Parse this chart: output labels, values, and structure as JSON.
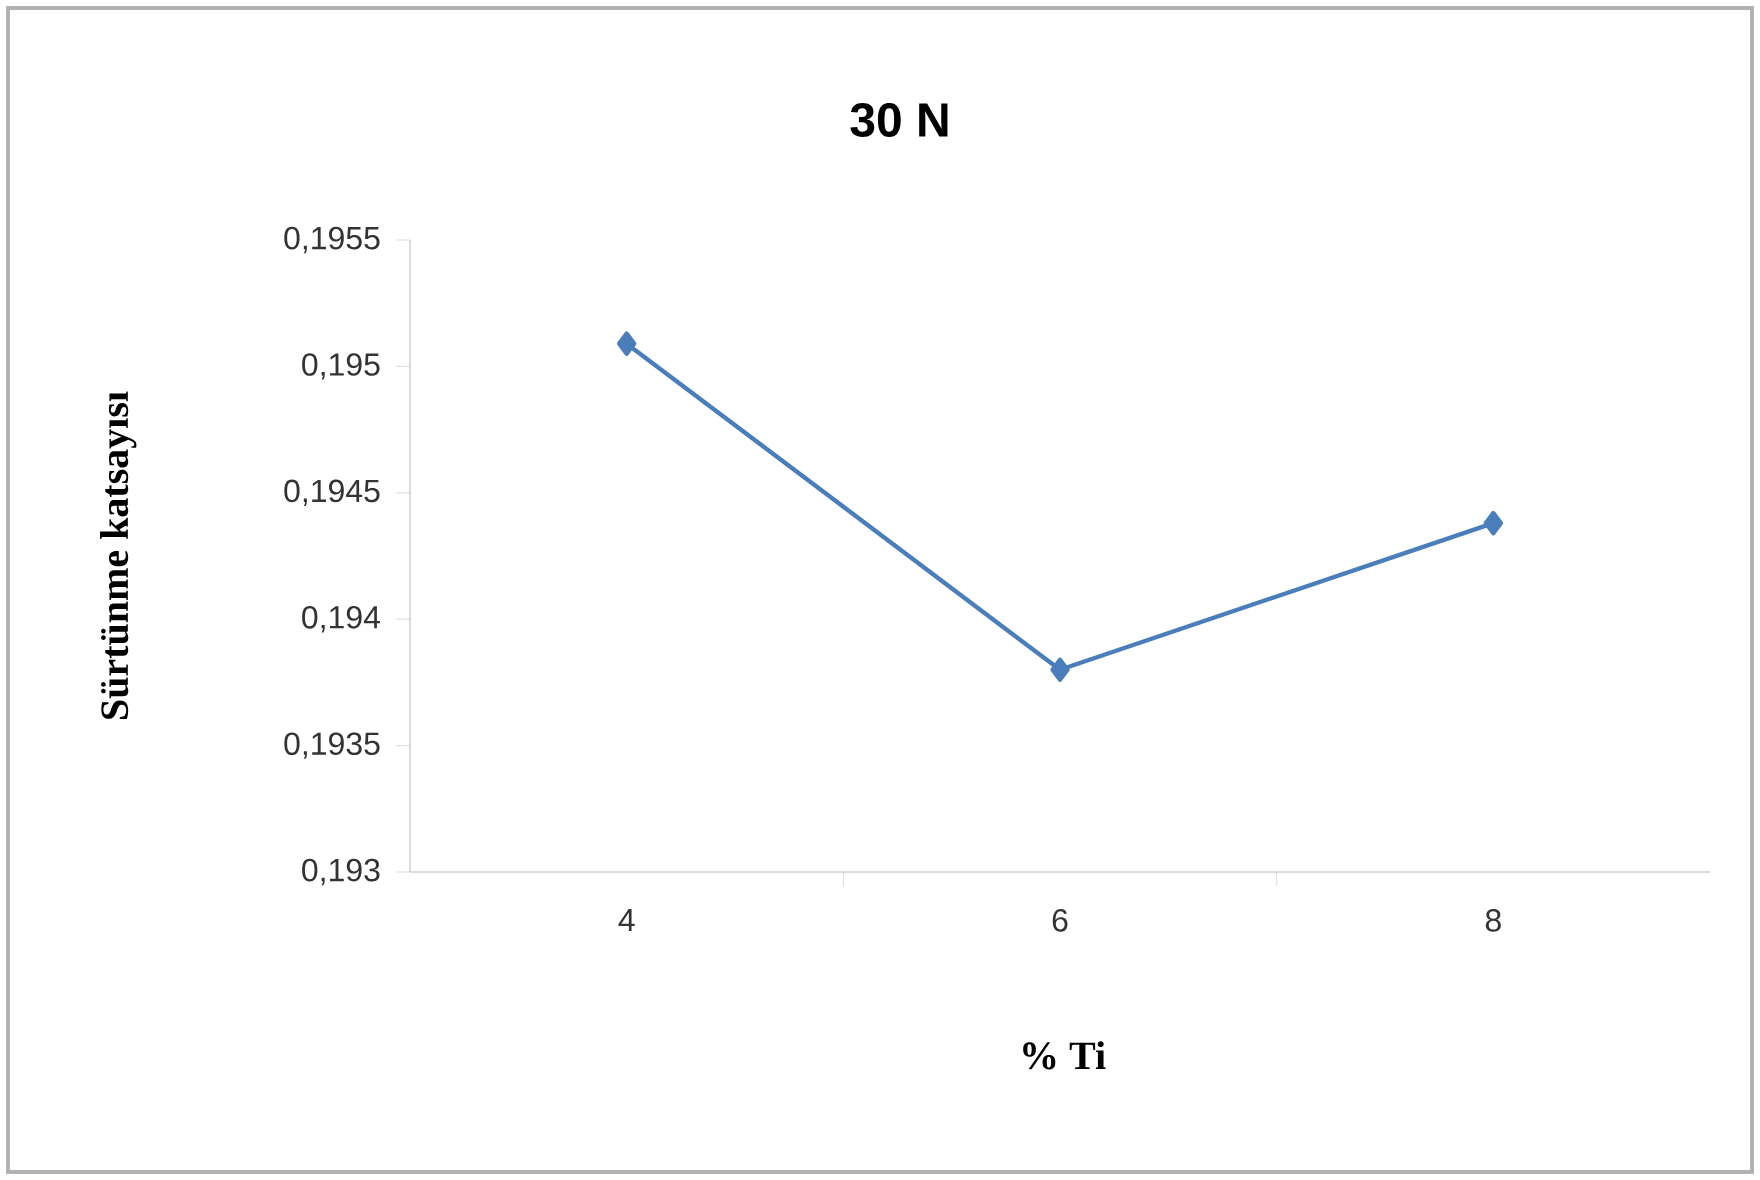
{
  "chart_data": {
    "type": "line",
    "title": "30 N",
    "xlabel": "% Ti",
    "ylabel": "Sürtünme katsayısı",
    "categories": [
      "4",
      "6",
      "8"
    ],
    "series": [
      {
        "color": "#4a7ebb",
        "values": [
          0.19509,
          0.1938,
          0.19438
        ]
      }
    ],
    "marker": "diamond",
    "line_style": "solid",
    "grid": false,
    "ylim": [
      0.193,
      0.1955
    ],
    "yticks": [
      {
        "value": 0.193,
        "label": "0,193"
      },
      {
        "value": 0.1935,
        "label": "0,1935"
      },
      {
        "value": 0.194,
        "label": "0,194"
      },
      {
        "value": 0.1945,
        "label": "0,1945"
      },
      {
        "value": 0.195,
        "label": "0,195"
      },
      {
        "value": 0.1955,
        "label": "0,1955"
      }
    ]
  }
}
